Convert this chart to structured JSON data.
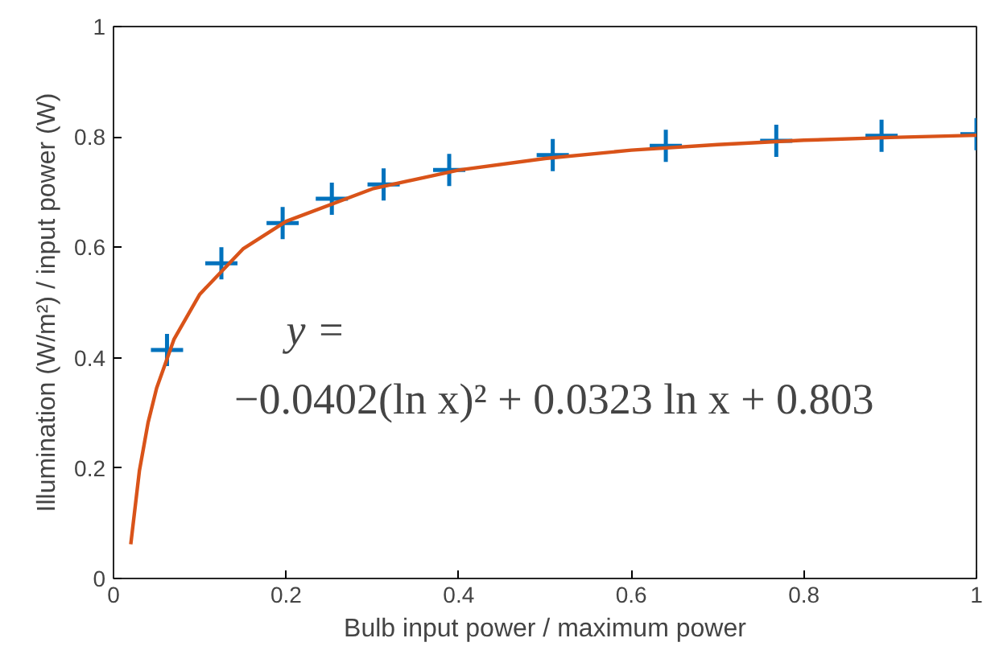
{
  "chart_data": {
    "type": "scatter",
    "xlabel": "Bulb input power / maximum power",
    "ylabel": "Illumination (W/m²) / input power (W)",
    "xlim": [
      0,
      1
    ],
    "ylim": [
      0,
      1
    ],
    "xticks": [
      0,
      0.2,
      0.4,
      0.6,
      0.8,
      1
    ],
    "yticks": [
      0,
      0.2,
      0.4,
      0.6,
      0.8,
      1
    ],
    "grid": false,
    "annotations": [
      "y =",
      "−0.0402(ln x)² + 0.0323 ln x + 0.803"
    ],
    "series": [
      {
        "marker": "cross",
        "color": "#0072bd",
        "x": [
          0.062,
          0.125,
          0.196,
          0.253,
          0.313,
          0.389,
          0.509,
          0.64,
          0.768,
          0.89,
          1.0
        ],
        "values": [
          0.414,
          0.571,
          0.644,
          0.688,
          0.714,
          0.74,
          0.767,
          0.784,
          0.793,
          0.802,
          0.805
        ]
      },
      {
        "type": "line",
        "color": "#d95319",
        "x": [
          0.02,
          0.03,
          0.04,
          0.05,
          0.07,
          0.1,
          0.15,
          0.2,
          0.3,
          0.4,
          0.5,
          0.6,
          0.7,
          0.8,
          0.9,
          1.0
        ],
        "values": [
          0.062,
          0.195,
          0.282,
          0.345,
          0.433,
          0.515,
          0.597,
          0.647,
          0.706,
          0.74,
          0.761,
          0.776,
          0.786,
          0.794,
          0.799,
          0.803
        ]
      }
    ]
  }
}
